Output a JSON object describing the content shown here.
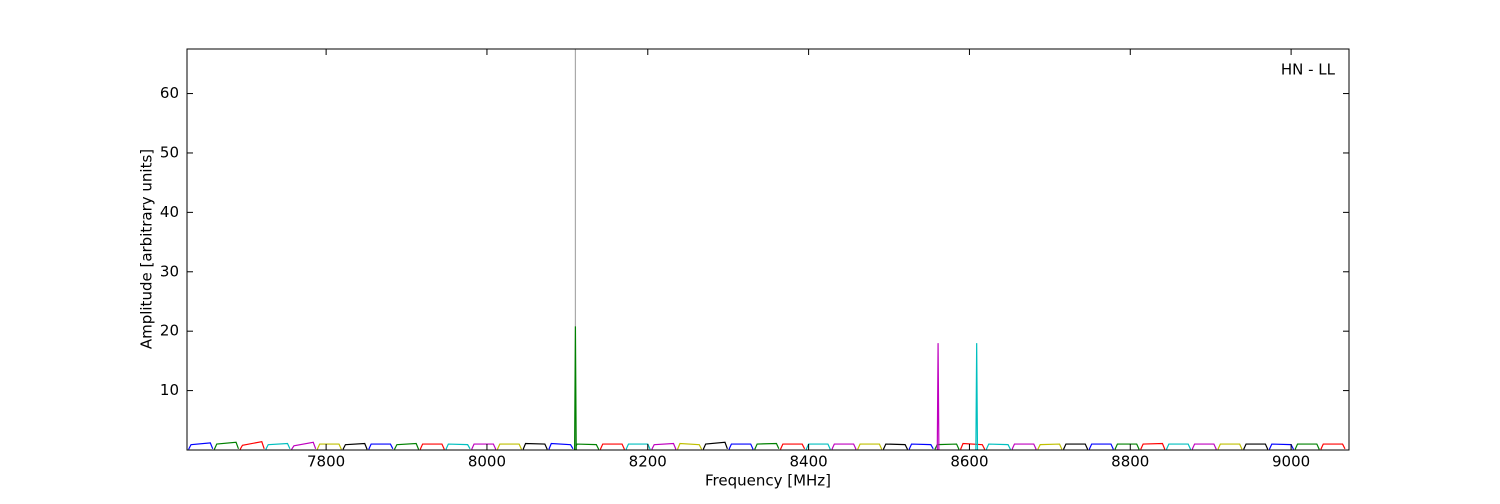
{
  "chart_data": {
    "type": "line",
    "annotation": "HN - LL",
    "x_label": "Frequency [MHz]",
    "y_label": "Amplitude [arbitrary units]",
    "xlim": [
      7627,
      9072
    ],
    "ylim": [
      0,
      67.5
    ],
    "xticks": [
      7800,
      8000,
      8200,
      8400,
      8600,
      8800,
      9000
    ],
    "yticks": [
      10,
      20,
      30,
      40,
      50,
      60
    ],
    "series": [
      {
        "color": "#0000ff",
        "x": [
          7629,
          7632,
          7656,
          7659,
          null,
          7853,
          7856,
          7880,
          7883,
          null,
          8077,
          8080,
          8104,
          8107,
          null,
          8301,
          8304,
          8328,
          8331,
          null,
          8525,
          8528,
          8552,
          8555,
          null,
          8749,
          8752,
          8776,
          8779,
          null,
          8973,
          8976,
          9000,
          9003
        ],
        "values": [
          0.1,
          0.9,
          1.2,
          0.2,
          null,
          0.1,
          1.0,
          1.0,
          0.2,
          null,
          0.1,
          1.1,
          0.9,
          0.2,
          null,
          0.1,
          1.0,
          1.0,
          0.1,
          null,
          0.1,
          1.0,
          0.9,
          0.2,
          null,
          0.1,
          1.0,
          1.0,
          0.1,
          null,
          0.1,
          1.0,
          0.9,
          0.1
        ]
      },
      {
        "color": "#008000",
        "x": [
          7661,
          7664,
          7688,
          7691,
          null,
          7885,
          7888,
          7912,
          7915,
          null,
          8109,
          8112,
          8136,
          8139,
          null,
          8333,
          8336,
          8360,
          8363,
          null,
          8557,
          8560,
          8584,
          8587,
          null,
          8781,
          8784,
          8808,
          8811,
          null,
          9005,
          9008,
          9032,
          9035
        ],
        "values": [
          0.1,
          1.0,
          1.3,
          0.2,
          null,
          0.1,
          0.9,
          1.1,
          0.1,
          null,
          0.1,
          1.0,
          0.9,
          0.1,
          null,
          0.1,
          1.0,
          1.1,
          0.2,
          null,
          0.1,
          0.9,
          1.0,
          0.1,
          null,
          0.1,
          1.0,
          1.0,
          0.1,
          null,
          0.1,
          1.0,
          1.0,
          0.1
        ]
      },
      {
        "color": "#ff0000",
        "x": [
          7693,
          7696,
          7720,
          7723,
          null,
          7917,
          7920,
          7944,
          7947,
          null,
          8141,
          8144,
          8168,
          8171,
          null,
          8365,
          8368,
          8392,
          8395,
          null,
          8589,
          8592,
          8616,
          8619,
          null,
          8813,
          8816,
          8840,
          8843,
          null,
          9037,
          9040,
          9064,
          9067
        ],
        "values": [
          0.1,
          0.8,
          1.4,
          0.2,
          null,
          0.1,
          1.0,
          1.0,
          0.1,
          null,
          0.1,
          1.0,
          1.0,
          0.1,
          null,
          0.1,
          1.0,
          1.0,
          0.2,
          null,
          0.1,
          1.1,
          0.9,
          0.1,
          null,
          0.1,
          1.0,
          1.1,
          0.1,
          null,
          0.1,
          1.0,
          1.0,
          0.2
        ]
      },
      {
        "color": "#00bfbf",
        "x": [
          7725,
          7728,
          7752,
          7755,
          null,
          7949,
          7952,
          7976,
          7979,
          null,
          8173,
          8176,
          8200,
          8203,
          null,
          8397,
          8400,
          8424,
          8427,
          null,
          8621,
          8624,
          8648,
          8651,
          null,
          8845,
          8848,
          8872,
          8875
        ],
        "values": [
          0.1,
          0.9,
          1.1,
          0.2,
          null,
          0.1,
          1.0,
          0.9,
          0.2,
          null,
          0.1,
          1.0,
          1.0,
          0.1,
          null,
          0.1,
          1.0,
          1.0,
          0.1,
          null,
          0.1,
          1.0,
          0.9,
          0.1,
          null,
          0.1,
          1.0,
          1.0,
          0.1
        ]
      },
      {
        "color": "#bf00bf",
        "x": [
          7757,
          7760,
          7784,
          7787,
          null,
          7981,
          7984,
          8008,
          8011,
          null,
          8205,
          8208,
          8232,
          8235,
          null,
          8429,
          8432,
          8456,
          8459,
          null,
          8653,
          8656,
          8680,
          8683,
          null,
          8877,
          8880,
          8904,
          8907
        ],
        "values": [
          0.1,
          0.7,
          1.3,
          0.2,
          null,
          0.1,
          1.0,
          1.0,
          0.1,
          null,
          0.1,
          0.9,
          1.1,
          0.1,
          null,
          0.1,
          1.0,
          1.0,
          0.1,
          null,
          0.1,
          1.0,
          1.0,
          0.1,
          null,
          0.1,
          1.0,
          1.0,
          0.1
        ]
      },
      {
        "color": "#bfbf00",
        "x": [
          7789,
          7792,
          7816,
          7819,
          null,
          8013,
          8016,
          8040,
          8043,
          null,
          8237,
          8240,
          8264,
          8267,
          null,
          8461,
          8464,
          8488,
          8491,
          null,
          8685,
          8688,
          8712,
          8715,
          null,
          8909,
          8912,
          8936,
          8939
        ],
        "values": [
          0.1,
          1.0,
          1.0,
          0.1,
          null,
          0.1,
          1.0,
          1.0,
          0.1,
          null,
          0.1,
          1.1,
          0.9,
          0.1,
          null,
          0.1,
          1.0,
          1.0,
          0.1,
          null,
          0.1,
          0.9,
          1.0,
          0.1,
          null,
          0.1,
          1.0,
          1.0,
          0.1
        ]
      },
      {
        "color": "#000000",
        "x": [
          7821,
          7824,
          7848,
          7851,
          null,
          8045,
          8048,
          8072,
          8075,
          null,
          8269,
          8272,
          8296,
          8299,
          null,
          8493,
          8496,
          8520,
          8523,
          null,
          8717,
          8720,
          8744,
          8747,
          null,
          8941,
          8944,
          8968,
          8971
        ],
        "values": [
          0.1,
          0.9,
          1.1,
          0.1,
          null,
          0.1,
          1.1,
          1.0,
          0.1,
          null,
          0.1,
          1.0,
          1.3,
          0.2,
          null,
          0.1,
          1.0,
          0.9,
          0.1,
          null,
          0.1,
          1.0,
          1.0,
          0.1,
          null,
          0.1,
          1.0,
          1.0,
          0.1
        ]
      },
      {
        "color": "#aaaaaa",
        "x": [
          8110,
          8110
        ],
        "values": [
          0,
          67.5
        ]
      },
      {
        "color": "#008000",
        "x": [
          8109,
          8110,
          8111
        ],
        "values": [
          0,
          20.8,
          0
        ]
      },
      {
        "color": "#bf00bf",
        "x": [
          8560,
          8561,
          8562
        ],
        "values": [
          0,
          18,
          0
        ]
      },
      {
        "color": "#00bfbf",
        "x": [
          8608,
          8609,
          8610
        ],
        "values": [
          0,
          18,
          0
        ]
      }
    ]
  }
}
